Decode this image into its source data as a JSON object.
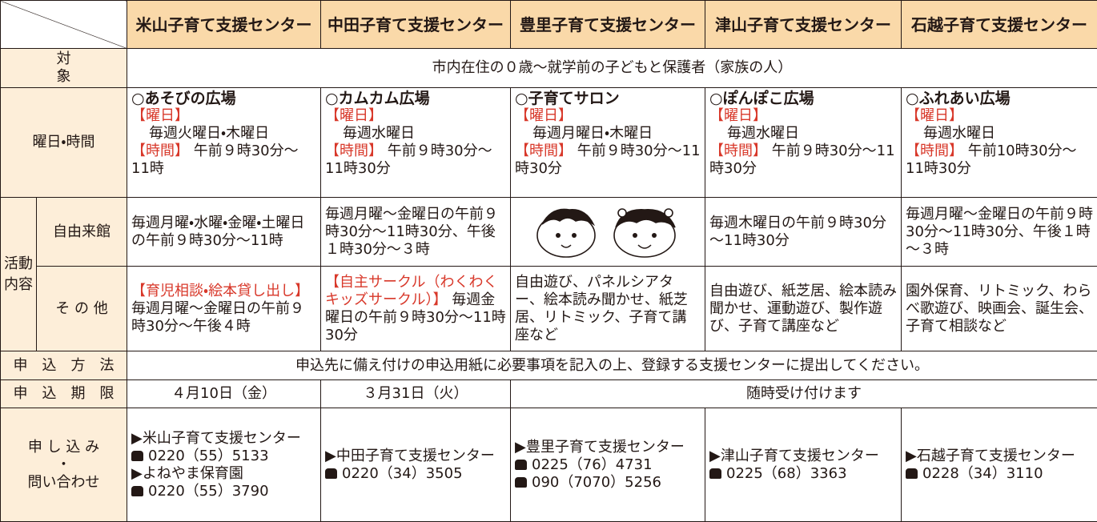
{
  "header": [
    "米山子育て支援センター",
    "中田子育て支援センター",
    "豊里子育て支援センター",
    "津山子育て支援センター",
    "石越子育て支援センター"
  ],
  "target": {
    "label": "対　　　　　　　　象",
    "text": "市内在住の０歳～就学前の子どもと保護者（家族の人）"
  },
  "schedule": {
    "label": "曜日・時間",
    "cells": [
      {
        "place": "○あそびの広場",
        "day_label": "【曜日】",
        "days": "毎週火曜日・木曜日",
        "time_label": "【時間】",
        "time": "午前９時30分～11時"
      },
      {
        "place": "○カムカム広場",
        "day_label": "【曜日】",
        "days": "毎週水曜日",
        "time_label": "【時間】",
        "time": "午前９時30分～11時30分"
      },
      {
        "place": "○子育てサロン",
        "day_label": "【曜日】",
        "days": "毎週月曜日・木曜日",
        "time_label": "【時間】",
        "time": "午前９時30分～11時30分"
      },
      {
        "place": "○ぽんぽこ広場",
        "day_label": "【曜日】",
        "days": "毎週水曜日",
        "time_label": "【時間】",
        "time": "午前９時30分～11時30分"
      },
      {
        "place": "○ふれあい広場",
        "day_label": "【曜日】",
        "days": "毎週水曜日",
        "time_label": "【時間】",
        "time": "午前10時30分～11時30分"
      }
    ]
  },
  "activities": {
    "label": "活動内容",
    "free": {
      "label": "自由来館",
      "cells": [
        "毎週月曜・水曜・金曜・土曜日の午前９時30分～11時",
        "毎週月曜～金曜日の午前９時30分～11時30分、午後１時30分～３時",
        "毎週木曜日の午前９時30分～11時30分",
        "毎週月曜～金曜日の午前９時30分～11時30分、午後１時～３時"
      ]
    },
    "other": {
      "label": "そ の 他",
      "cells": [
        {
          "heading": "【育児相談・絵本貸し出し】",
          "text": "毎週月曜～金曜日の午前９時30分～午後４時"
        },
        {
          "heading": "【自主サークル（わくわくキッズサークル）】",
          "text": "毎週金曜日の午前９時30分～11時30分"
        },
        {
          "text": "自由遊び、パネルシアター、絵本読み聞かせ、紙芝居、リトミック、子育て講座など"
        },
        {
          "text": "自由遊び、紙芝居、絵本読み聞かせ、運動遊び、製作遊び、子育て講座など"
        },
        {
          "text": "園外保育、リトミック、わらべ歌遊び、映画会、誕生会、子育て相談など"
        }
      ]
    }
  },
  "method": {
    "label": "申　込　方　法",
    "text": "申込先に備え付けの申込用紙に必要事項を記入の上、登録する支援センターに提出してください。"
  },
  "deadline": {
    "label": "申　込　期　限",
    "cells": [
      "４月10日（金）",
      "３月31日（火）",
      "随時受け付けます"
    ]
  },
  "contact": {
    "label": [
      "申 し 込 み",
      "・",
      "問い合わせ"
    ],
    "cells": [
      [
        {
          "name": "▶米山子育て支援センター",
          "phones": [
            "0220（55）5133"
          ]
        },
        {
          "name": "▶よねやま保育園",
          "phones": [
            "0220（55）3790"
          ]
        }
      ],
      [
        {
          "name": "▶中田子育て支援センター",
          "phones": [
            "0220（34）3505"
          ]
        }
      ],
      [
        {
          "name": "▶豊里子育て支援センター",
          "phones": [
            "0225（76）4731",
            "090（7070）5256"
          ]
        }
      ],
      [
        {
          "name": "▶津山子育て支援センター",
          "phones": [
            "0225（68）3363"
          ]
        }
      ],
      [
        {
          "name": "▶石越子育て支援センター",
          "phones": [
            "0228（34）3110"
          ]
        }
      ]
    ]
  }
}
